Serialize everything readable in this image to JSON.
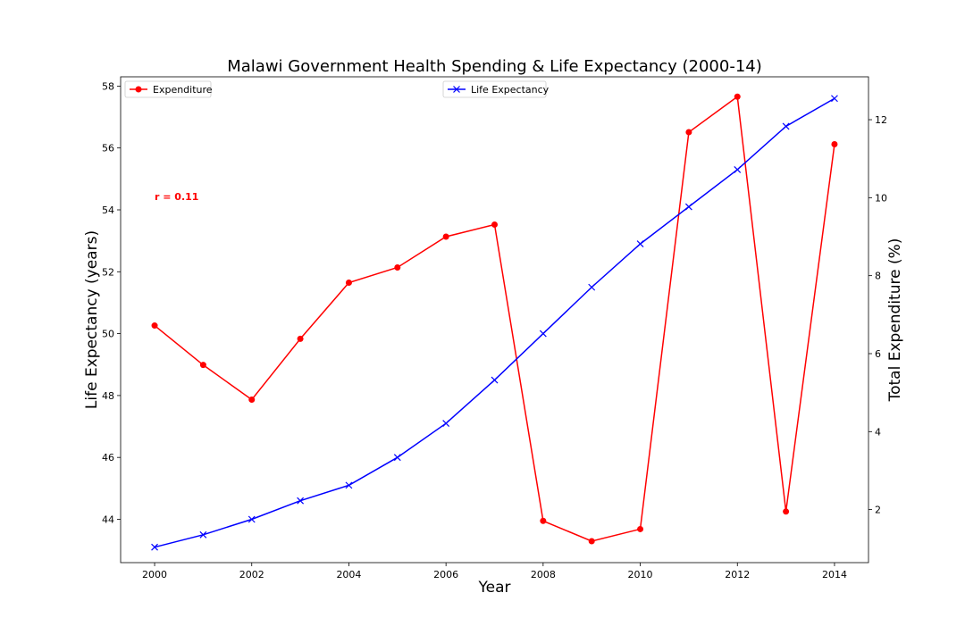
{
  "chart_data": {
    "type": "line",
    "title": "Malawi Government Health Spending & Life Expectancy (2000-14)",
    "xlabel": "Year",
    "ylabel_left": "Life Expectancy (years)",
    "ylabel_right": "Total Expenditure (%)",
    "x": [
      2000,
      2001,
      2002,
      2003,
      2004,
      2005,
      2006,
      2007,
      2008,
      2009,
      2010,
      2011,
      2012,
      2013,
      2014
    ],
    "x_ticks": [
      "2000",
      "2002",
      "2004",
      "2006",
      "2008",
      "2010",
      "2012",
      "2014"
    ],
    "xlim": [
      1999.3,
      2014.7
    ],
    "left_axis": {
      "ylim": [
        42.6,
        58.3
      ],
      "ticks": [
        "44",
        "46",
        "48",
        "50",
        "52",
        "54",
        "56",
        "58"
      ]
    },
    "right_axis": {
      "ylim": [
        0.64,
        13.1
      ],
      "ticks": [
        "2",
        "4",
        "6",
        "8",
        "10",
        "12"
      ]
    },
    "series": [
      {
        "name": "Expenditure",
        "axis": "right",
        "color": "#ff0000",
        "marker": "circle",
        "values": [
          6.72,
          5.71,
          4.82,
          6.38,
          7.82,
          8.21,
          9.0,
          9.31,
          1.71,
          1.19,
          1.5,
          11.68,
          12.59,
          1.95,
          11.37
        ]
      },
      {
        "name": "Life Expectancy",
        "axis": "left",
        "color": "#0000ff",
        "marker": "x",
        "values": [
          43.1,
          43.5,
          44.0,
          44.6,
          45.1,
          46.0,
          47.1,
          48.5,
          50.0,
          51.5,
          52.9,
          54.1,
          55.3,
          56.7,
          57.6
        ]
      }
    ],
    "annotation": {
      "text": "r = 0.11",
      "color": "#ff0000"
    },
    "legends": [
      "upper left (Expenditure)",
      "upper center (Life Expectancy)"
    ],
    "grid": false
  }
}
